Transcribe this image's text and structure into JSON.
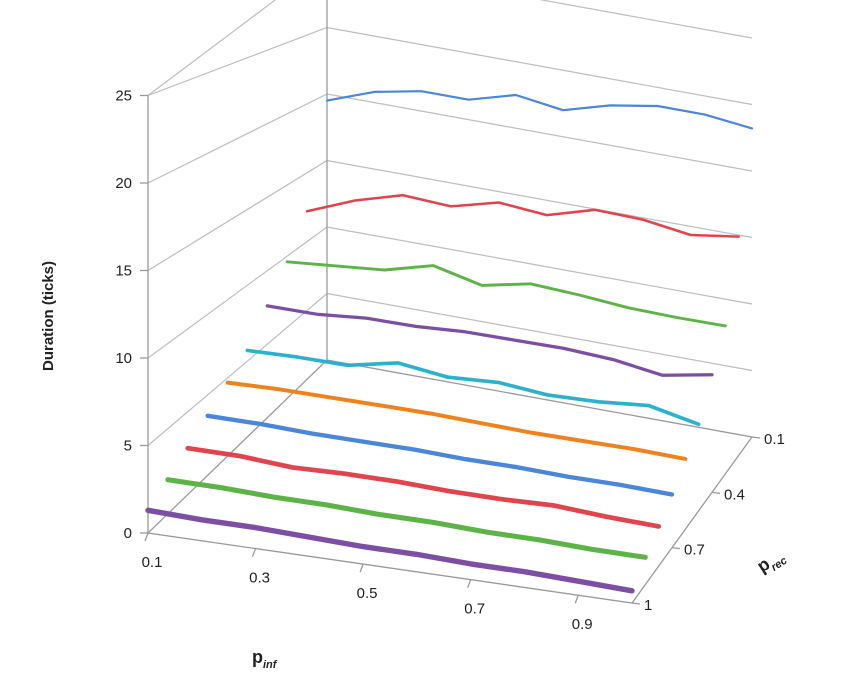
{
  "chart_data": {
    "type": "line",
    "title": "",
    "ylabel": "Duration (ticks)",
    "xlabel": "p",
    "xlabel_sub": "inf",
    "zlabel": "p",
    "zlabel_sub": "rec",
    "ylim": [
      0,
      25
    ],
    "y_ticks": [
      "0",
      "5",
      "10",
      "15",
      "20",
      "25"
    ],
    "x_tick_labels": [
      "0.1",
      "0.3",
      "0.5",
      "0.7",
      "0.9"
    ],
    "z_tick_labels": [
      "0.1",
      "0.4",
      "0.7",
      "1"
    ],
    "x": [
      0.1,
      0.2,
      0.3,
      0.4,
      0.5,
      0.6,
      0.7,
      0.8,
      0.9,
      1.0
    ],
    "depth": [
      0.1,
      0.2,
      0.3,
      0.4,
      0.5,
      0.6,
      0.7,
      0.8,
      0.9,
      1.0
    ],
    "grid": true,
    "series": [
      {
        "depth": 0.1,
        "color": "#4a86d9",
        "values": [
          19.5,
          20.8,
          21.5,
          21.5,
          22.5,
          22.0,
          23.0,
          23.6,
          23.6,
          23.2
        ]
      },
      {
        "depth": 0.2,
        "color": "#e0454d",
        "values": [
          12.2,
          13.6,
          14.6,
          14.4,
          15.3,
          15.0,
          16.0,
          15.9,
          15.4,
          15.9
        ]
      },
      {
        "depth": 0.3,
        "color": "#5cb346",
        "values": [
          9.6,
          9.9,
          10.2,
          11.1,
          10.3,
          11.0,
          10.8,
          10.5,
          10.4,
          10.4
        ]
      },
      {
        "depth": 0.4,
        "color": "#7c4fa5",
        "values": [
          7.6,
          7.6,
          7.9,
          7.9,
          8.1,
          8.1,
          8.1,
          7.9,
          7.4,
          8.0
        ]
      },
      {
        "depth": 0.5,
        "color": "#2ab2cd",
        "values": [
          5.7,
          5.8,
          5.8,
          6.5,
          6.1,
          6.3,
          6.0,
          6.1,
          6.4,
          5.7
        ]
      },
      {
        "depth": 0.6,
        "color": "#f0821e",
        "values": [
          4.7,
          4.8,
          4.8,
          4.8,
          4.8,
          4.7,
          4.6,
          4.6,
          4.6,
          4.5
        ]
      },
      {
        "depth": 0.7,
        "color": "#4a86d9",
        "values": [
          3.7,
          3.7,
          3.6,
          3.6,
          3.6,
          3.5,
          3.5,
          3.4,
          3.4,
          3.3
        ]
      },
      {
        "depth": 0.8,
        "color": "#e0454d",
        "values": [
          2.8,
          2.8,
          2.6,
          2.7,
          2.7,
          2.6,
          2.6,
          2.7,
          2.5,
          2.4
        ]
      },
      {
        "depth": 0.9,
        "color": "#5cb346",
        "values": [
          2.0,
          2.0,
          1.9,
          1.9,
          1.8,
          1.8,
          1.7,
          1.7,
          1.6,
          1.6
        ]
      },
      {
        "depth": 1.0,
        "color": "#7c4fa5",
        "values": [
          1.3,
          1.2,
          1.2,
          1.1,
          1.0,
          1.0,
          0.9,
          0.9,
          0.8,
          0.7
        ]
      }
    ]
  }
}
